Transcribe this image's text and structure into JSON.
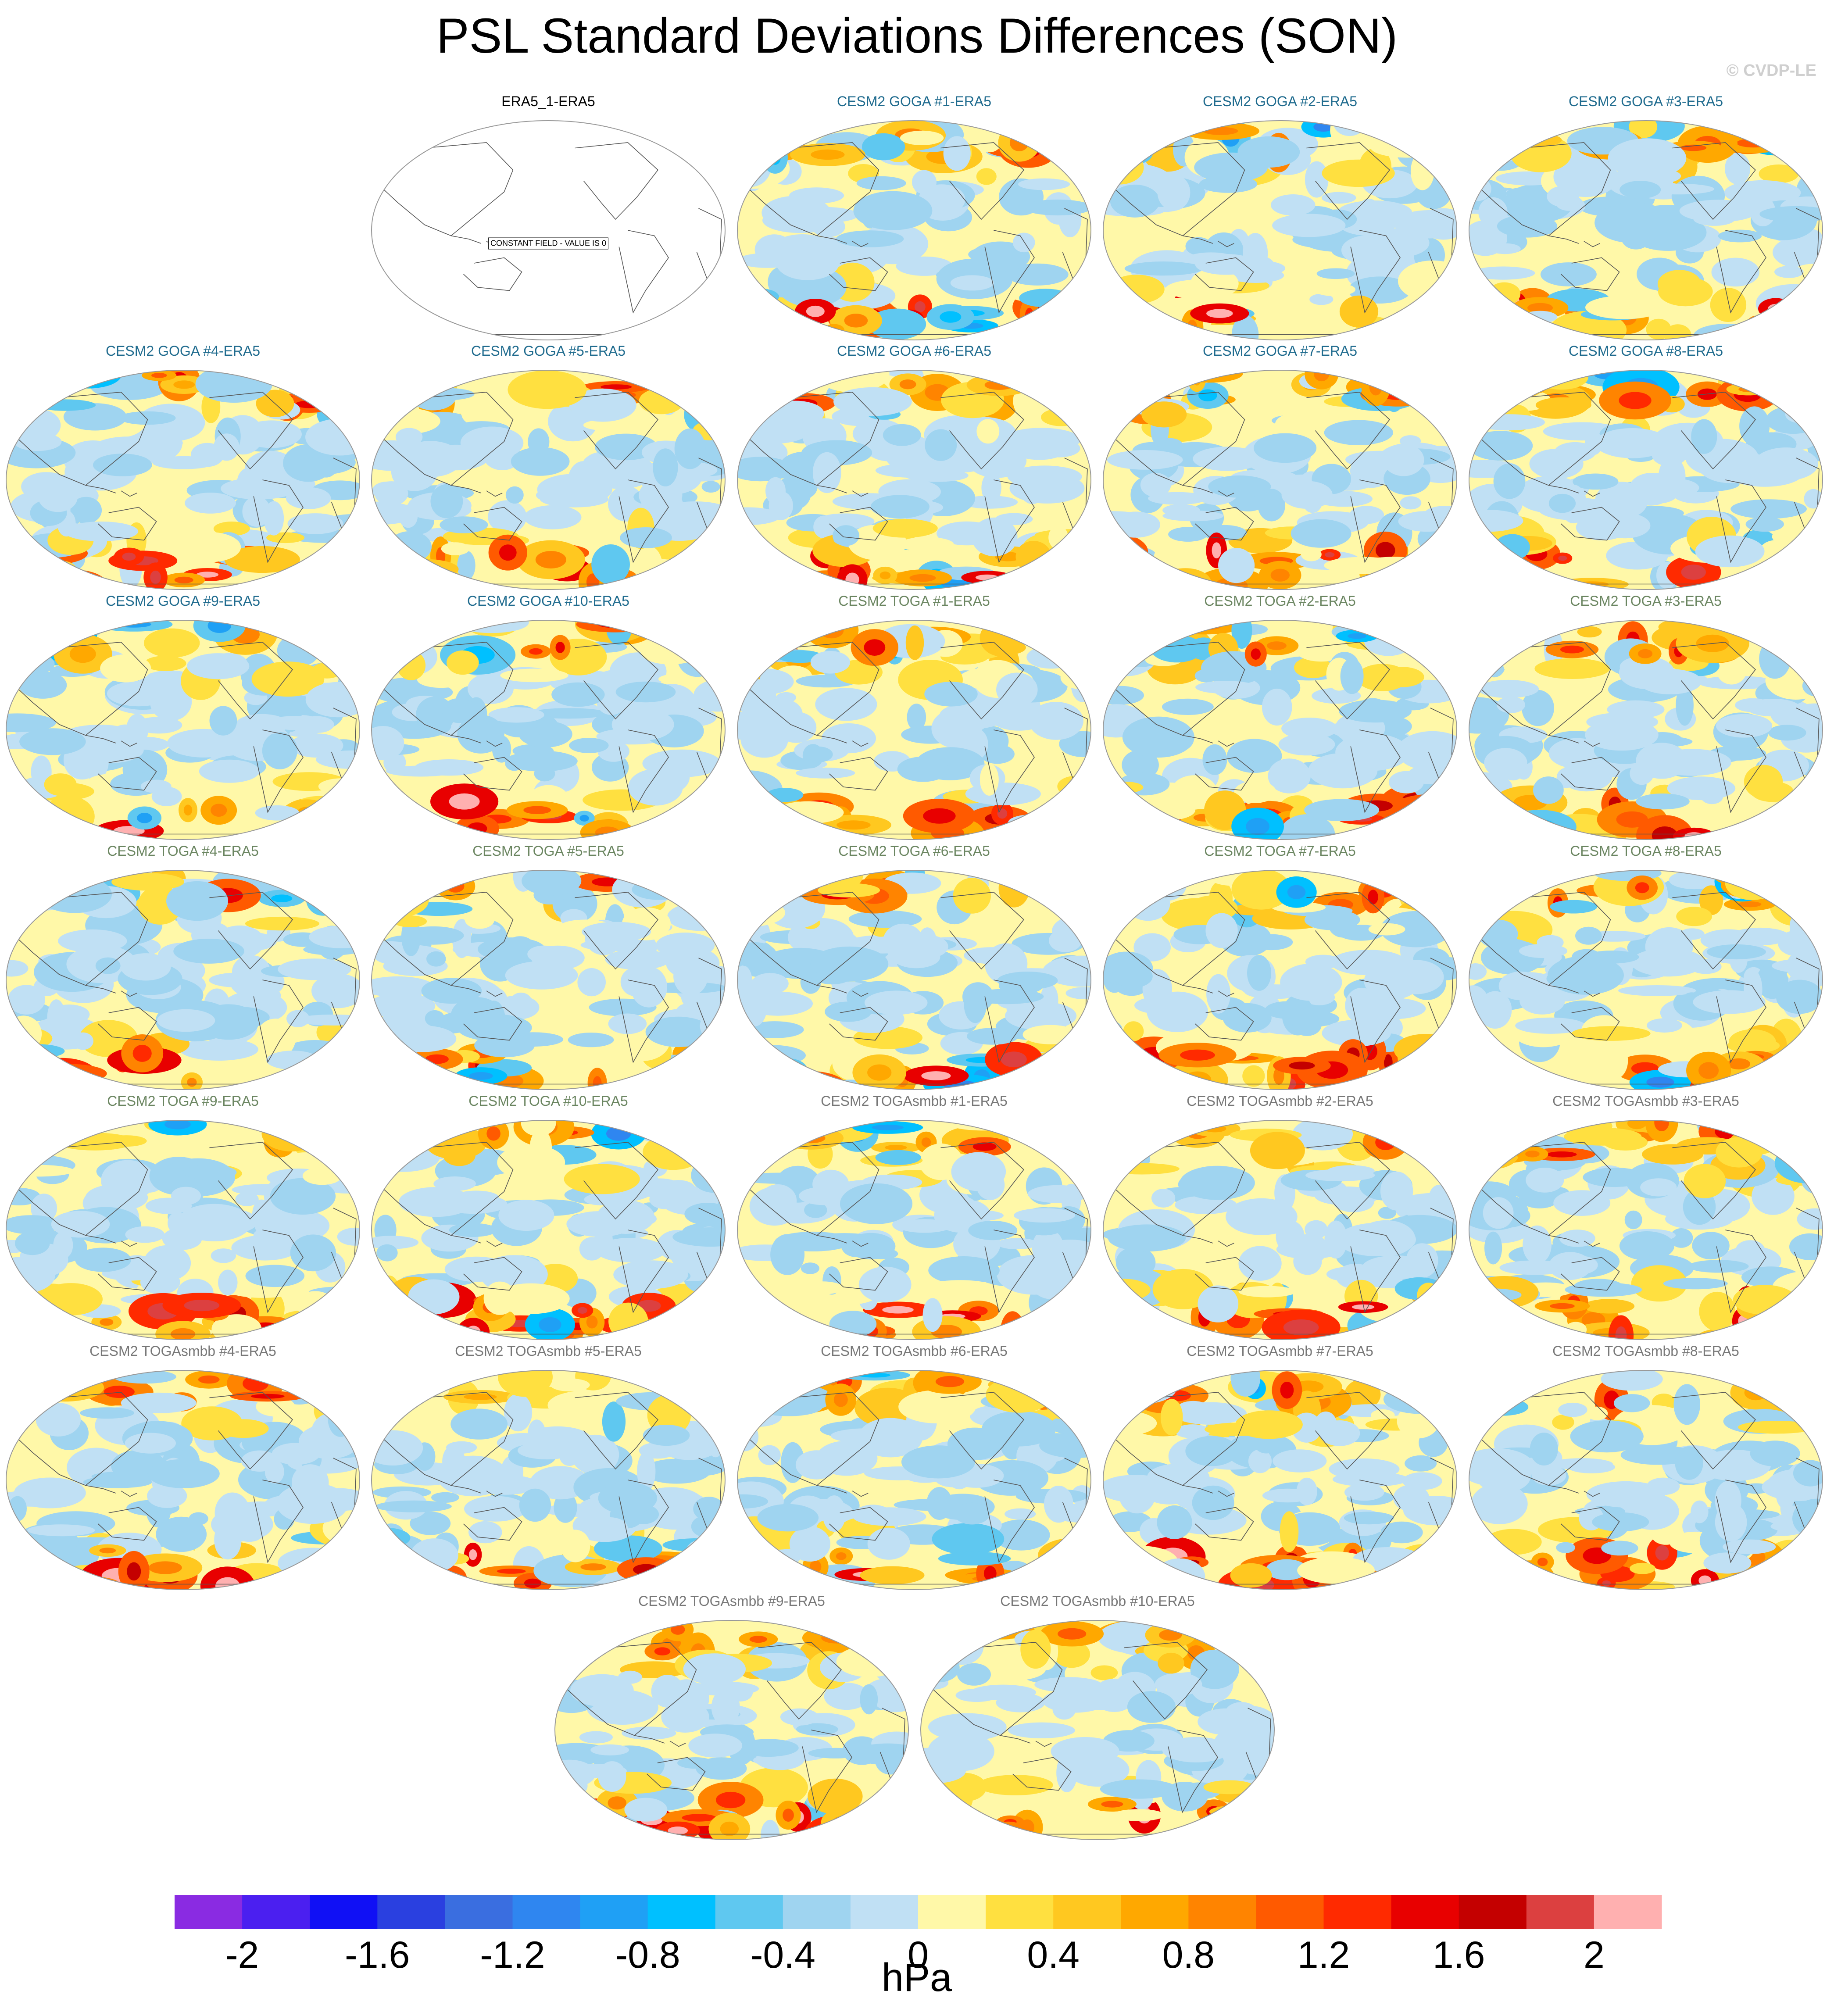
{
  "title": "PSL Standard Deviations Differences (SON)",
  "credit": "© CVDP-LE",
  "colors": {
    "title_goga": "#1f6b8e",
    "title_toga": "#6a8560",
    "title_smbb": "#777777",
    "title_ref": "#000000",
    "coast": "#555555",
    "outline": "#999999"
  },
  "chart_data": {
    "type": "heatmap",
    "projection": "Robinson (global, Pacific-centred)",
    "field": "PSL standard deviation difference",
    "season": "SON",
    "units": "hPa",
    "colorbar": {
      "levels": [
        -2.2,
        -2.0,
        -1.8,
        -1.6,
        -1.4,
        -1.2,
        -1.0,
        -0.8,
        -0.6,
        -0.4,
        -0.2,
        0.0,
        0.2,
        0.4,
        0.6,
        0.8,
        1.0,
        1.2,
        1.4,
        1.6,
        1.8,
        2.0,
        2.2
      ],
      "colors": [
        "#8a2be2",
        "#4b1ff0",
        "#1010f5",
        "#2a40e0",
        "#3a6ee0",
        "#2f86f0",
        "#1fa0f5",
        "#00c0ff",
        "#5fc8f0",
        "#9fd4f0",
        "#c0e0f4",
        "#fff8a8",
        "#ffe040",
        "#ffc820",
        "#ffa800",
        "#ff8400",
        "#ff5a00",
        "#ff2a00",
        "#e80000",
        "#c40000",
        "#dc4040",
        "#ffb0b0"
      ],
      "tick_labels": [
        "-2",
        "-1.6",
        "-1.2",
        "-0.8",
        "-0.4",
        "0",
        "0.4",
        "0.8",
        "1.2",
        "1.6",
        "2"
      ],
      "tick_values": [
        -2.0,
        -1.6,
        -1.2,
        -0.8,
        -0.4,
        0.0,
        0.4,
        0.8,
        1.2,
        1.6,
        2.0
      ]
    },
    "panels": [
      {
        "title": "ERA5_1-ERA5",
        "group": "ref",
        "constant": true,
        "note": "CONSTANT FIELD - VALUE IS 0"
      },
      {
        "title": "CESM2 GOGA #1-ERA5",
        "group": "goga",
        "seed": 11
      },
      {
        "title": "CESM2 GOGA #2-ERA5",
        "group": "goga",
        "seed": 12
      },
      {
        "title": "CESM2 GOGA #3-ERA5",
        "group": "goga",
        "seed": 13
      },
      {
        "title": "CESM2 GOGA #4-ERA5",
        "group": "goga",
        "seed": 14
      },
      {
        "title": "CESM2 GOGA #5-ERA5",
        "group": "goga",
        "seed": 15
      },
      {
        "title": "CESM2 GOGA #6-ERA5",
        "group": "goga",
        "seed": 16
      },
      {
        "title": "CESM2 GOGA #7-ERA5",
        "group": "goga",
        "seed": 17
      },
      {
        "title": "CESM2 GOGA #8-ERA5",
        "group": "goga",
        "seed": 18
      },
      {
        "title": "CESM2 GOGA #9-ERA5",
        "group": "goga",
        "seed": 19
      },
      {
        "title": "CESM2 GOGA #10-ERA5",
        "group": "goga",
        "seed": 20
      },
      {
        "title": "CESM2 TOGA #1-ERA5",
        "group": "toga",
        "seed": 21
      },
      {
        "title": "CESM2 TOGA #2-ERA5",
        "group": "toga",
        "seed": 22
      },
      {
        "title": "CESM2 TOGA #3-ERA5",
        "group": "toga",
        "seed": 23
      },
      {
        "title": "CESM2 TOGA #4-ERA5",
        "group": "toga",
        "seed": 24
      },
      {
        "title": "CESM2 TOGA #5-ERA5",
        "group": "toga",
        "seed": 25
      },
      {
        "title": "CESM2 TOGA #6-ERA5",
        "group": "toga",
        "seed": 26
      },
      {
        "title": "CESM2 TOGA #7-ERA5",
        "group": "toga",
        "seed": 27
      },
      {
        "title": "CESM2 TOGA #8-ERA5",
        "group": "toga",
        "seed": 28
      },
      {
        "title": "CESM2 TOGA #9-ERA5",
        "group": "toga",
        "seed": 29
      },
      {
        "title": "CESM2 TOGA #10-ERA5",
        "group": "toga",
        "seed": 30
      },
      {
        "title": "CESM2 TOGAsmbb #1-ERA5",
        "group": "smbb",
        "seed": 31
      },
      {
        "title": "CESM2 TOGAsmbb #2-ERA5",
        "group": "smbb",
        "seed": 32
      },
      {
        "title": "CESM2 TOGAsmbb #3-ERA5",
        "group": "smbb",
        "seed": 33
      },
      {
        "title": "CESM2 TOGAsmbb #4-ERA5",
        "group": "smbb",
        "seed": 34
      },
      {
        "title": "CESM2 TOGAsmbb #5-ERA5",
        "group": "smbb",
        "seed": 35
      },
      {
        "title": "CESM2 TOGAsmbb #6-ERA5",
        "group": "smbb",
        "seed": 36
      },
      {
        "title": "CESM2 TOGAsmbb #7-ERA5",
        "group": "smbb",
        "seed": 37
      },
      {
        "title": "CESM2 TOGAsmbb #8-ERA5",
        "group": "smbb",
        "seed": 38
      },
      {
        "title": "CESM2 TOGAsmbb #9-ERA5",
        "group": "smbb",
        "seed": 39
      },
      {
        "title": "CESM2 TOGAsmbb #10-ERA5",
        "group": "smbb",
        "seed": 40
      }
    ]
  }
}
